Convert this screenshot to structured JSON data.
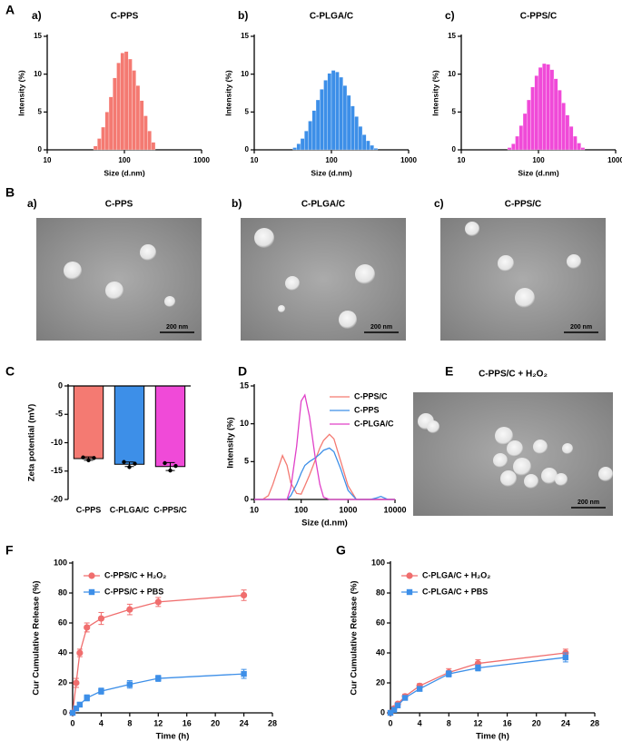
{
  "section_labels": [
    "A",
    "B"
  ],
  "tem_images": [
    {
      "panel": "a)",
      "title": "C-PPS",
      "scale_bar": "200 nm"
    },
    {
      "panel": "b)",
      "title": "C-PLGA/C",
      "scale_bar": "200 nm"
    },
    {
      "panel": "c)",
      "title": "C-PPS/C",
      "scale_bar": "200 nm"
    },
    {
      "panel": "E",
      "title": "C-PPS/C + H₂O₂",
      "scale_bar": "200 nm"
    }
  ],
  "chart_data": [
    {
      "type": "histogram",
      "panel": "a)",
      "title": "C-PPS",
      "xlabel": "Size (d.nm)",
      "ylabel": "Intensity (%)",
      "color": "#f47a72",
      "xscale": "log",
      "xlim": [
        10,
        1000
      ],
      "xticks": [
        10,
        100,
        1000
      ],
      "ylim": [
        0,
        15
      ],
      "yticks": [
        0,
        5,
        10,
        15
      ],
      "bins": [
        31.6,
        35.5,
        39.8,
        44.7,
        50.1,
        56.2,
        63.1,
        70.8,
        79.4,
        89.1,
        100,
        112.2,
        125.9,
        141.3,
        158.5,
        177.8,
        199.5,
        223.9,
        251.2,
        281.8,
        316.2,
        354.8,
        398.1,
        446.7,
        501.2
      ],
      "values": [
        0,
        0,
        0.5,
        1.5,
        3,
        5,
        7,
        9.5,
        11.5,
        12.8,
        13,
        12,
        10.5,
        8.5,
        6.5,
        4.5,
        2.5,
        1,
        0,
        0,
        0,
        0,
        0,
        0
      ]
    },
    {
      "type": "histogram",
      "panel": "b)",
      "title": "C-PLGA/C",
      "xlabel": "Size (d.nm)",
      "ylabel": "Intensity (%)",
      "color": "#3d8fe8",
      "xscale": "log",
      "xlim": [
        10,
        1000
      ],
      "xticks": [
        10,
        100,
        1000
      ],
      "ylim": [
        0,
        15
      ],
      "yticks": [
        0,
        5,
        10,
        15
      ],
      "bins": [
        31.6,
        35.5,
        39.8,
        44.7,
        50.1,
        56.2,
        63.1,
        70.8,
        79.4,
        89.1,
        100,
        112.2,
        125.9,
        141.3,
        158.5,
        177.8,
        199.5,
        223.9,
        251.2,
        281.8,
        316.2,
        354.8,
        398.1,
        446.7,
        501.2
      ],
      "values": [
        0.3,
        0.8,
        1.5,
        2.5,
        3.8,
        5.2,
        6.6,
        8,
        9.2,
        10.1,
        10.5,
        10.3,
        9.6,
        8.5,
        7.2,
        5.8,
        4.4,
        3.1,
        2,
        1.2,
        0.6,
        0.2,
        0,
        0
      ]
    },
    {
      "type": "histogram",
      "panel": "c)",
      "title": "C-PPS/C",
      "xlabel": "Size (d.nm)",
      "ylabel": "Intensity (%)",
      "color": "#f04ad8",
      "xscale": "log",
      "xlim": [
        10,
        1000
      ],
      "xticks": [
        10,
        100,
        1000
      ],
      "ylim": [
        0,
        15
      ],
      "yticks": [
        0,
        5,
        10,
        15
      ],
      "bins": [
        31.6,
        35.5,
        39.8,
        44.7,
        50.1,
        56.2,
        63.1,
        70.8,
        79.4,
        89.1,
        100,
        112.2,
        125.9,
        141.3,
        158.5,
        177.8,
        199.5,
        223.9,
        251.2,
        281.8,
        316.2,
        354.8,
        398.1,
        446.7,
        501.2
      ],
      "values": [
        0,
        0,
        0.3,
        0.8,
        1.8,
        3.2,
        4.8,
        6.6,
        8.3,
        9.8,
        10.9,
        11.4,
        11.3,
        10.6,
        9.4,
        7.9,
        6.2,
        4.6,
        3.1,
        1.8,
        0.9,
        0.3,
        0,
        0
      ]
    },
    {
      "type": "bar",
      "panel": "C",
      "ylabel": "Zeta potential (mV)",
      "categories": [
        "C-PPS",
        "C-PLGA/C",
        "C-PPS/C"
      ],
      "colors": [
        "#f47a72",
        "#3d8fe8",
        "#f04ad8"
      ],
      "values": [
        -12.8,
        -13.8,
        -14.2
      ],
      "errors": [
        0.3,
        0.4,
        0.7
      ],
      "points": [
        [
          -12.6,
          -13.1,
          -12.7
        ],
        [
          -13.4,
          -14.3,
          -13.7
        ],
        [
          -13.6,
          -14.9,
          -14.1
        ]
      ],
      "ylim": [
        -20,
        0
      ],
      "yticks": [
        -20,
        -15,
        -10,
        -5,
        0
      ]
    },
    {
      "type": "line",
      "panel": "D",
      "xlabel": "Size (d.nm)",
      "ylabel": "Intensity (%)",
      "xscale": "log",
      "legend": "upper right",
      "xlim": [
        10,
        10000
      ],
      "xticks": [
        10,
        100,
        1000,
        10000
      ],
      "ylim": [
        0,
        15
      ],
      "yticks": [
        0,
        5,
        10,
        15
      ],
      "x": [
        10,
        15,
        20,
        25,
        30,
        40,
        50,
        60,
        80,
        100,
        120,
        150,
        200,
        250,
        300,
        400,
        500,
        700,
        1000,
        1500,
        2000,
        3000,
        4000,
        5000,
        7000,
        10000
      ],
      "series": [
        {
          "name": "C-PPS/C",
          "color": "#f47a72",
          "values": [
            0,
            0,
            0.5,
            2,
            3.5,
            5.8,
            4.5,
            2.2,
            0.8,
            0.7,
            1.8,
            3.2,
            5.2,
            6.8,
            7.8,
            8.6,
            8,
            5,
            1.8,
            0,
            0,
            0,
            0,
            0,
            0,
            0
          ]
        },
        {
          "name": "C-PPS",
          "color": "#3d8fe8",
          "values": [
            0,
            0,
            0,
            0,
            0,
            0,
            0,
            0.5,
            2,
            3.5,
            4.5,
            5,
            5.5,
            6,
            6.5,
            6.8,
            6.3,
            4,
            1.2,
            0,
            0,
            0,
            0.2,
            0.4,
            0,
            0
          ]
        },
        {
          "name": "C-PLGA/C",
          "color": "#e040c8",
          "values": [
            0,
            0,
            0,
            0,
            0,
            0,
            0,
            1.5,
            7,
            13,
            13.8,
            11,
            5.5,
            2,
            0.3,
            0,
            0,
            0,
            0,
            0,
            0,
            0,
            0,
            0,
            0,
            0
          ]
        }
      ]
    },
    {
      "type": "errorline",
      "panel": "F",
      "xlabel": "Time (h)",
      "ylabel": "Cur Cumulative Release (%)",
      "legend": "upper left",
      "xlim": [
        0,
        28
      ],
      "xticks": [
        0,
        4,
        8,
        12,
        16,
        20,
        24,
        28
      ],
      "ylim": [
        0,
        100
      ],
      "yticks": [
        0,
        20,
        40,
        60,
        80,
        100
      ],
      "x": [
        0,
        0.5,
        1,
        2,
        4,
        8,
        12,
        24
      ],
      "series": [
        {
          "name": "C-PPS/C + H₂O₂",
          "color": "#f06e6e",
          "marker": "circle",
          "values": [
            0,
            20,
            40,
            57,
            63,
            69,
            74,
            78.5
          ],
          "errors": [
            0.5,
            3,
            2.5,
            3,
            4,
            3.5,
            3,
            3.5
          ]
        },
        {
          "name": "C-PPS/C + PBS",
          "color": "#3d8fe8",
          "marker": "square",
          "values": [
            0,
            3,
            5.5,
            10,
            14.5,
            19,
            23,
            26
          ],
          "errors": [
            0.5,
            1,
            1.5,
            2,
            2,
            2.5,
            2,
            3
          ]
        }
      ]
    },
    {
      "type": "errorline",
      "panel": "G",
      "xlabel": "Time (h)",
      "ylabel": "Cur Cumulative Release (%)",
      "legend": "upper left",
      "xlim": [
        0,
        28
      ],
      "xticks": [
        0,
        4,
        8,
        12,
        16,
        20,
        24,
        28
      ],
      "ylim": [
        0,
        100
      ],
      "yticks": [
        0,
        20,
        40,
        60,
        80,
        100
      ],
      "x": [
        0,
        0.5,
        1,
        2,
        4,
        8,
        12,
        24
      ],
      "series": [
        {
          "name": "C-PLGA/C + H₂O₂",
          "color": "#f06e6e",
          "marker": "circle",
          "values": [
            0,
            3,
            6,
            11,
            18,
            27,
            33,
            40
          ],
          "errors": [
            0.5,
            1,
            1,
            1.5,
            1.5,
            2.5,
            2.5,
            2.5
          ]
        },
        {
          "name": "C-PLGA/C + PBS",
          "color": "#3d8fe8",
          "marker": "square",
          "values": [
            0,
            2,
            5,
            10,
            16,
            26,
            30,
            37
          ],
          "errors": [
            0.5,
            1,
            1,
            1.5,
            1.5,
            2,
            2,
            3
          ]
        }
      ]
    }
  ]
}
